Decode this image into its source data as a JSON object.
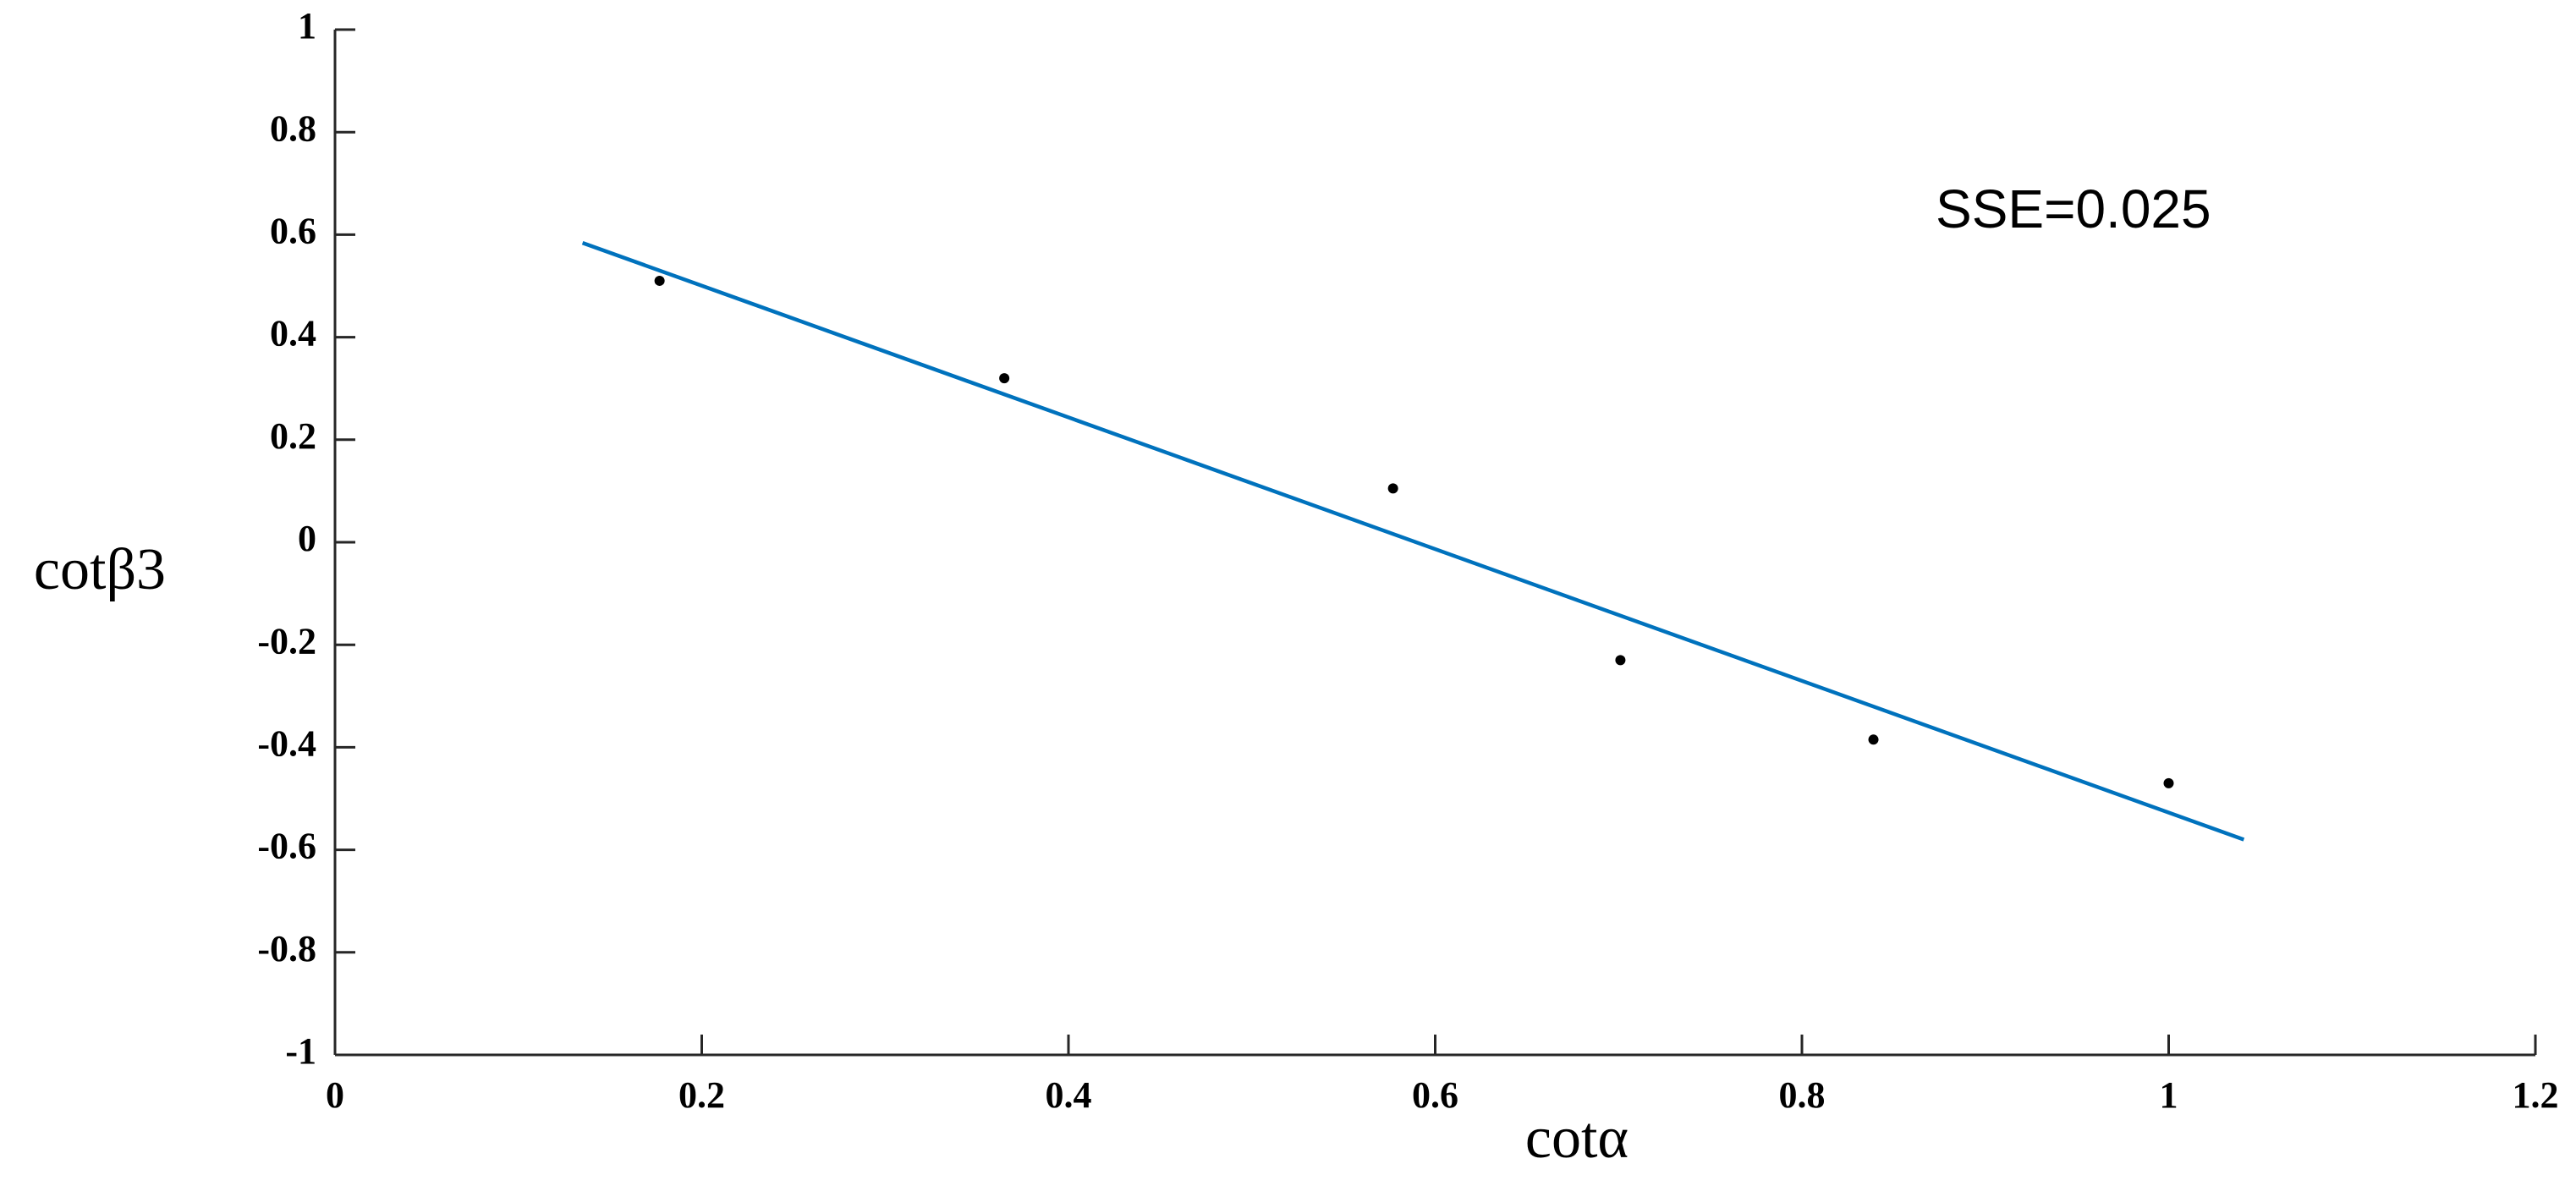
{
  "chart_data": {
    "type": "scatter",
    "xlabel": "cotα",
    "ylabel": "cotβ3",
    "annotation": "SSE=0.025",
    "xlim": [
      0,
      1.2
    ],
    "xticks": [
      0,
      0.2,
      0.4,
      0.6,
      0.8,
      1,
      1.2
    ],
    "ylim": [
      -1,
      1
    ],
    "yticks": [
      -1,
      -0.8,
      -0.6,
      -0.4,
      -0.2,
      0,
      0.2,
      0.4,
      0.6,
      0.8,
      1
    ],
    "grid": false,
    "series": [
      {
        "style": "points",
        "color": "#000000",
        "x": [
          0.177,
          0.365,
          0.577,
          0.701,
          0.839,
          1.0
        ],
        "values": [
          0.51,
          0.32,
          0.105,
          -0.23,
          -0.385,
          -0.47
        ]
      },
      {
        "style": "line",
        "color": "#0072bd",
        "x": [
          0.135,
          1.041
        ],
        "values": [
          0.584,
          -0.58
        ]
      }
    ]
  }
}
